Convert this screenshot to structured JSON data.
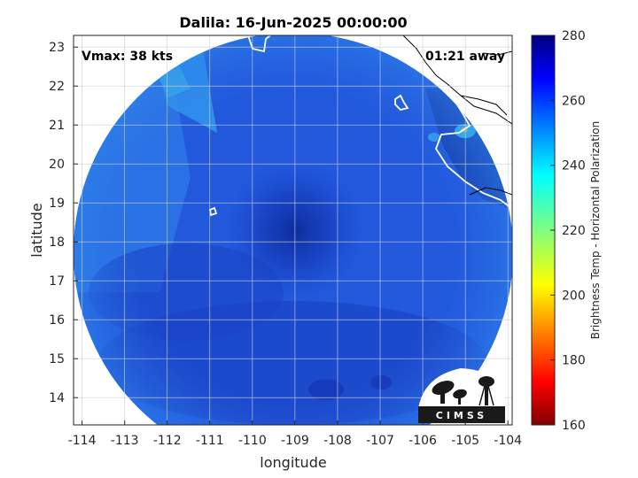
{
  "chart_data": {
    "type": "heatmap",
    "title": "Dalila: 16-Jun-2025 00:00:00",
    "xlabel": "longitude",
    "ylabel": "latitude",
    "xlim": [
      -114.2,
      -103.9
    ],
    "ylim": [
      13.3,
      23.3
    ],
    "x_ticks": [
      -114,
      -113,
      -112,
      -111,
      -110,
      -109,
      -108,
      -107,
      -106,
      -105,
      -104
    ],
    "y_ticks": [
      14,
      15,
      16,
      17,
      18,
      19,
      20,
      21,
      22,
      23
    ],
    "grid": true,
    "annotations": {
      "vmax": "Vmax: 38 kts",
      "time_away": "01:21 away"
    },
    "storm_center": {
      "lon": -109.0,
      "lat": 18.3
    },
    "colorbar": {
      "label": "Brightness Temp - Horizontal Polarization",
      "clim": [
        160,
        280
      ],
      "ticks": [
        160,
        180,
        200,
        220,
        240,
        260,
        280
      ],
      "colormap": "jet",
      "position": "right"
    }
  },
  "logo": {
    "text": "CIMSS"
  }
}
